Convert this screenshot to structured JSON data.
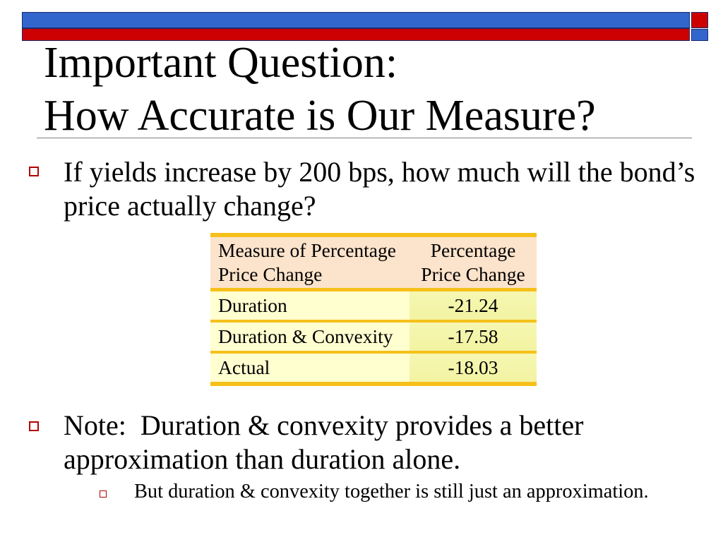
{
  "colors": {
    "blue": "#3366CC",
    "red": "#CC0000",
    "rule": "#7F7F7F",
    "bullet": "#B40000",
    "table_border": "#F6C01A",
    "header_bg": "#FCE3CB",
    "cell_bg": "#FFFFD0",
    "value_bg": "#F2F3A2"
  },
  "title": {
    "line1": "Important Question:",
    "line2": "How Accurate is Our Measure?"
  },
  "bullets": [
    {
      "icon": "hollow-square-bullet",
      "text": "If yields increase by 200 bps, how much will the bond’s price actually change?"
    },
    {
      "icon": "hollow-square-bullet",
      "text": "Note:  Duration & convexity provides a better approximation than duration alone.",
      "sub": [
        {
          "icon": "hollow-square-bullet",
          "text": "But duration & convexity together is still just an approximation."
        }
      ]
    }
  ],
  "table": {
    "headers": [
      "Measure of Percentage Price Change",
      "Percentage Price Change"
    ],
    "rows": [
      {
        "measure": "Duration",
        "change": "-21.24"
      },
      {
        "measure": "Duration & Convexity",
        "change": "-17.58"
      },
      {
        "measure": "Actual",
        "change": "-18.03"
      }
    ]
  }
}
